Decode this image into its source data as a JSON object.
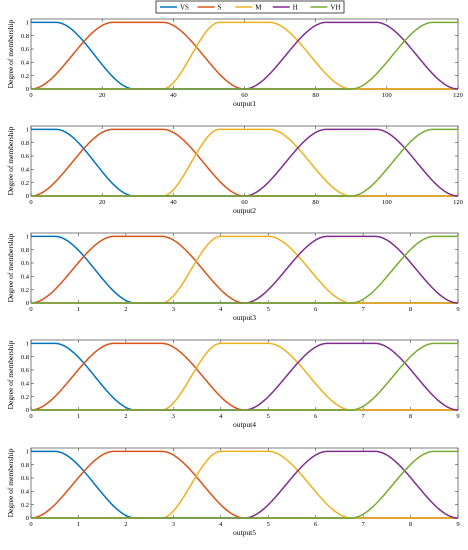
{
  "colors": {
    "VS": "#0072BD",
    "S": "#D95319",
    "M": "#EDB120",
    "H": "#7E2F8E",
    "VH": "#77AC30"
  },
  "legend": [
    "VS",
    "S",
    "M",
    "H",
    "VH"
  ],
  "chart_data": [
    {
      "type": "line",
      "membership": "smooth trapezoidal",
      "xlabel": "output1",
      "ylabel": "Degree of membership",
      "xlim": [
        0,
        120
      ],
      "ylim": [
        0,
        1.05
      ],
      "xticks": [
        0,
        20,
        40,
        60,
        80,
        100,
        120
      ],
      "yticks": [
        0,
        0.2,
        0.4,
        0.6,
        0.8,
        1
      ],
      "yticklabels": [
        "0",
        "0.2",
        "0.4",
        "0.6",
        "0.8",
        "1"
      ],
      "grid": false,
      "series": [
        {
          "name": "VS",
          "points": [
            [
              0,
              0
            ],
            [
              0,
              1
            ],
            [
              7,
              1
            ],
            [
              29,
              0
            ]
          ]
        },
        {
          "name": "S",
          "points": [
            [
              0,
              0
            ],
            [
              23,
              1
            ],
            [
              37,
              1
            ],
            [
              60,
              0
            ]
          ]
        },
        {
          "name": "M",
          "points": [
            [
              37,
              0
            ],
            [
              53,
              1
            ],
            [
              67,
              1
            ],
            [
              90,
              0
            ]
          ]
        },
        {
          "name": "H",
          "points": [
            [
              60,
              0
            ],
            [
              83,
              1
            ],
            [
              97,
              1
            ],
            [
              120,
              0
            ]
          ]
        },
        {
          "name": "VH",
          "points": [
            [
              90,
              0
            ],
            [
              113,
              1
            ],
            [
              120,
              1
            ],
            [
              120,
              1
            ]
          ]
        }
      ]
    },
    {
      "type": "line",
      "membership": "smooth trapezoidal",
      "xlabel": "output2",
      "ylabel": "Degree of membership",
      "xlim": [
        0,
        120
      ],
      "ylim": [
        0,
        1.05
      ],
      "xticks": [
        0,
        20,
        40,
        60,
        80,
        100,
        120
      ],
      "yticks": [
        0,
        0.2,
        0.4,
        0.6,
        0.8,
        1
      ],
      "yticklabels": [
        "0",
        "0.2",
        "0.4",
        "0.6",
        "0.8",
        "1"
      ],
      "grid": false,
      "series": [
        {
          "name": "VS",
          "points": [
            [
              0,
              0
            ],
            [
              0,
              1
            ],
            [
              7,
              1
            ],
            [
              29,
              0
            ]
          ]
        },
        {
          "name": "S",
          "points": [
            [
              0,
              0
            ],
            [
              23,
              1
            ],
            [
              37,
              1
            ],
            [
              60,
              0
            ]
          ]
        },
        {
          "name": "M",
          "points": [
            [
              37,
              0
            ],
            [
              53,
              1
            ],
            [
              67,
              1
            ],
            [
              90,
              0
            ]
          ]
        },
        {
          "name": "H",
          "points": [
            [
              60,
              0
            ],
            [
              83,
              1
            ],
            [
              97,
              1
            ],
            [
              120,
              0
            ]
          ]
        },
        {
          "name": "VH",
          "points": [
            [
              90,
              0
            ],
            [
              113,
              1
            ],
            [
              120,
              1
            ],
            [
              120,
              1
            ]
          ]
        }
      ]
    },
    {
      "type": "line",
      "membership": "smooth trapezoidal",
      "xlabel": "output3",
      "ylabel": "Degree of membership",
      "xlim": [
        0,
        9
      ],
      "ylim": [
        0,
        1.05
      ],
      "xticks": [
        0,
        1,
        2,
        3,
        4,
        5,
        6,
        7,
        8,
        9
      ],
      "yticks": [
        0,
        0.2,
        0.4,
        0.6,
        0.8,
        1
      ],
      "yticklabels": [
        "0",
        "0.2",
        "0.4",
        "0.6",
        "0.8",
        "1"
      ],
      "grid": false,
      "series": [
        {
          "name": "VS",
          "points": [
            [
              0,
              0
            ],
            [
              0,
              1
            ],
            [
              0.5,
              1
            ],
            [
              2.2,
              0
            ]
          ]
        },
        {
          "name": "S",
          "points": [
            [
              0,
              0
            ],
            [
              1.75,
              1
            ],
            [
              2.75,
              1
            ],
            [
              4.5,
              0
            ]
          ]
        },
        {
          "name": "M",
          "points": [
            [
              2.75,
              0
            ],
            [
              4,
              1
            ],
            [
              5,
              1
            ],
            [
              6.75,
              0
            ]
          ]
        },
        {
          "name": "H",
          "points": [
            [
              4.5,
              0
            ],
            [
              6.25,
              1
            ],
            [
              7.25,
              1
            ],
            [
              9,
              0
            ]
          ]
        },
        {
          "name": "VH",
          "points": [
            [
              6.75,
              0
            ],
            [
              8.5,
              1
            ],
            [
              9,
              1
            ],
            [
              9,
              1
            ]
          ]
        }
      ]
    },
    {
      "type": "line",
      "membership": "smooth trapezoidal",
      "xlabel": "output4",
      "ylabel": "Degree of membership",
      "xlim": [
        0,
        9
      ],
      "ylim": [
        0,
        1.05
      ],
      "xticks": [
        0,
        1,
        2,
        3,
        4,
        5,
        6,
        7,
        8,
        9
      ],
      "yticks": [
        0,
        0.2,
        0.4,
        0.6,
        0.8,
        1
      ],
      "yticklabels": [
        "0",
        "0.2",
        "0.4",
        "0.6",
        "0.8",
        "1"
      ],
      "grid": false,
      "series": [
        {
          "name": "VS",
          "points": [
            [
              0,
              0
            ],
            [
              0,
              1
            ],
            [
              0.5,
              1
            ],
            [
              2.2,
              0
            ]
          ]
        },
        {
          "name": "S",
          "points": [
            [
              0,
              0
            ],
            [
              1.75,
              1
            ],
            [
              2.75,
              1
            ],
            [
              4.5,
              0
            ]
          ]
        },
        {
          "name": "M",
          "points": [
            [
              2.75,
              0
            ],
            [
              4,
              1
            ],
            [
              5,
              1
            ],
            [
              6.75,
              0
            ]
          ]
        },
        {
          "name": "H",
          "points": [
            [
              4.5,
              0
            ],
            [
              6.25,
              1
            ],
            [
              7.25,
              1
            ],
            [
              9,
              0
            ]
          ]
        },
        {
          "name": "VH",
          "points": [
            [
              6.75,
              0
            ],
            [
              8.5,
              1
            ],
            [
              9,
              1
            ],
            [
              9,
              1
            ]
          ]
        }
      ]
    },
    {
      "type": "line",
      "membership": "smooth trapezoidal",
      "xlabel": "output5",
      "ylabel": "Degree of membership",
      "xlim": [
        0,
        9
      ],
      "ylim": [
        0,
        1.05
      ],
      "xticks": [
        0,
        1,
        2,
        3,
        4,
        5,
        6,
        7,
        8,
        9
      ],
      "yticks": [
        0,
        0.2,
        0.4,
        0.6,
        0.8,
        1
      ],
      "yticklabels": [
        "0",
        "0.2",
        "0.4",
        "0.6",
        "0.8",
        "1"
      ],
      "grid": false,
      "series": [
        {
          "name": "VS",
          "points": [
            [
              0,
              0
            ],
            [
              0,
              1
            ],
            [
              0.5,
              1
            ],
            [
              2.2,
              0
            ]
          ]
        },
        {
          "name": "S",
          "points": [
            [
              0,
              0
            ],
            [
              1.75,
              1
            ],
            [
              2.75,
              1
            ],
            [
              4.5,
              0
            ]
          ]
        },
        {
          "name": "M",
          "points": [
            [
              2.75,
              0
            ],
            [
              4,
              1
            ],
            [
              5,
              1
            ],
            [
              6.75,
              0
            ]
          ]
        },
        {
          "name": "H",
          "points": [
            [
              4.5,
              0
            ],
            [
              6.25,
              1
            ],
            [
              7.25,
              1
            ],
            [
              9,
              0
            ]
          ]
        },
        {
          "name": "VH",
          "points": [
            [
              6.75,
              0
            ],
            [
              8.5,
              1
            ],
            [
              9,
              1
            ],
            [
              9,
              1
            ]
          ]
        }
      ]
    }
  ]
}
